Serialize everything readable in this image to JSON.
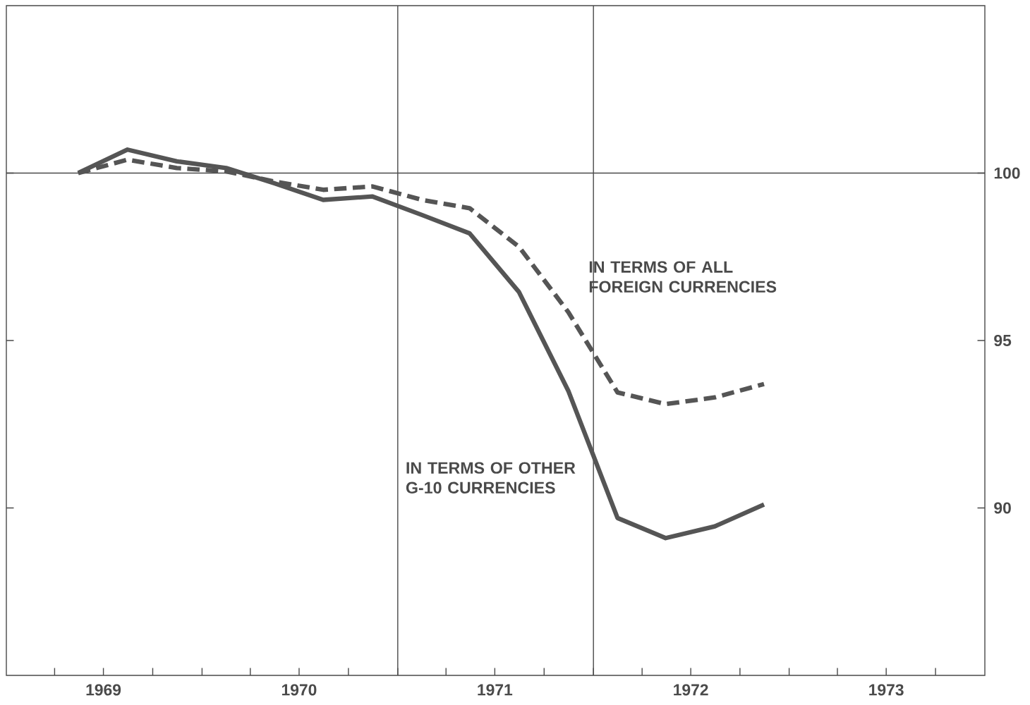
{
  "chart_data": {
    "type": "line",
    "x": [
      "1969-05-15",
      "1969-08-15",
      "1969-11-15",
      "1970-02-15",
      "1970-05-15",
      "1970-08-15",
      "1970-11-15",
      "1971-02-15",
      "1971-05-15",
      "1971-08-15",
      "1971-11-15",
      "1972-02-15",
      "1972-05-15",
      "1972-08-15",
      "1972-11-15"
    ],
    "series": [
      {
        "name": "IN TERMS OF ALL FOREIGN CURRENCIES",
        "color": "#555555",
        "line_style": "dashed",
        "values": [
          100.0,
          100.4,
          100.15,
          100.05,
          99.75,
          99.5,
          99.6,
          99.2,
          98.95,
          97.8,
          95.85,
          93.45,
          93.1,
          93.3,
          93.7
        ]
      },
      {
        "name": "IN TERMS OF OTHER G-10 CURRENCIES",
        "color": "#555555",
        "line_style": "solid",
        "values": [
          100.0,
          100.7,
          100.35,
          100.15,
          99.7,
          99.2,
          99.3,
          98.75,
          98.2,
          96.45,
          93.5,
          89.7,
          89.1,
          89.45,
          90.1
        ]
      }
    ],
    "xlim": [
      "1969-01-01",
      "1974-01-01"
    ],
    "xticks": [
      {
        "value": "1969-04-01",
        "label": null
      },
      {
        "value": "1969-07-01",
        "label": "1969"
      },
      {
        "value": "1969-10-01",
        "label": null
      },
      {
        "value": "1970-01-01",
        "label": null
      },
      {
        "value": "1970-04-01",
        "label": null
      },
      {
        "value": "1970-07-01",
        "label": "1970"
      },
      {
        "value": "1970-10-01",
        "label": null
      },
      {
        "value": "1971-01-01",
        "label": null
      },
      {
        "value": "1971-04-01",
        "label": null
      },
      {
        "value": "1971-07-01",
        "label": "1971"
      },
      {
        "value": "1971-10-01",
        "label": null
      },
      {
        "value": "1972-01-01",
        "label": null
      },
      {
        "value": "1972-04-01",
        "label": null
      },
      {
        "value": "1972-07-01",
        "label": "1972"
      },
      {
        "value": "1972-10-01",
        "label": null
      },
      {
        "value": "1973-01-01",
        "label": null
      },
      {
        "value": "1973-04-01",
        "label": null
      },
      {
        "value": "1973-07-01",
        "label": "1973"
      },
      {
        "value": "1973-10-01",
        "label": null
      }
    ],
    "ylim": [
      85,
      105
    ],
    "yticks": [
      90,
      95,
      100
    ],
    "ref_lines": [
      {
        "axis": "y",
        "value": 100,
        "label": null
      },
      {
        "axis": "x",
        "value": "1971-01-01",
        "label": null
      },
      {
        "axis": "x",
        "value": "1972-01-01",
        "label": null
      }
    ],
    "grid": false,
    "legend": false,
    "marker": "none"
  }
}
